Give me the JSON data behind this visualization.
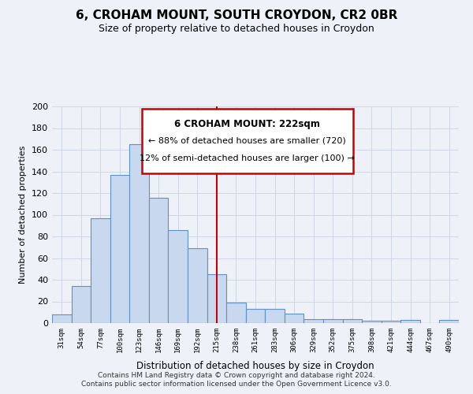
{
  "title": "6, CROHAM MOUNT, SOUTH CROYDON, CR2 0BR",
  "subtitle": "Size of property relative to detached houses in Croydon",
  "xlabel": "Distribution of detached houses by size in Croydon",
  "ylabel": "Number of detached properties",
  "bar_labels": [
    "31sqm",
    "54sqm",
    "77sqm",
    "100sqm",
    "123sqm",
    "146sqm",
    "169sqm",
    "192sqm",
    "215sqm",
    "238sqm",
    "261sqm",
    "283sqm",
    "306sqm",
    "329sqm",
    "352sqm",
    "375sqm",
    "398sqm",
    "421sqm",
    "444sqm",
    "467sqm",
    "490sqm"
  ],
  "bar_values": [
    8,
    34,
    97,
    137,
    165,
    116,
    86,
    69,
    45,
    19,
    13,
    13,
    9,
    4,
    4,
    4,
    2,
    2,
    3,
    0,
    3
  ],
  "bar_color": "#c8d8ef",
  "bar_edge_color": "#6090c8",
  "vline_x": 8,
  "vline_color": "#cc0000",
  "annotation_title": "6 CROHAM MOUNT: 222sqm",
  "annotation_line1": "← 88% of detached houses are smaller (720)",
  "annotation_line2": "12% of semi-detached houses are larger (100) →",
  "annotation_box_color": "#ffffff",
  "annotation_box_edge": "#cc0000",
  "ylim": [
    0,
    200
  ],
  "yticks": [
    0,
    20,
    40,
    60,
    80,
    100,
    120,
    140,
    160,
    180,
    200
  ],
  "footnote1": "Contains HM Land Registry data © Crown copyright and database right 2024.",
  "footnote2": "Contains public sector information licensed under the Open Government Licence v3.0.",
  "bg_color": "#eef2f8",
  "grid_color": "#d0d8e8"
}
